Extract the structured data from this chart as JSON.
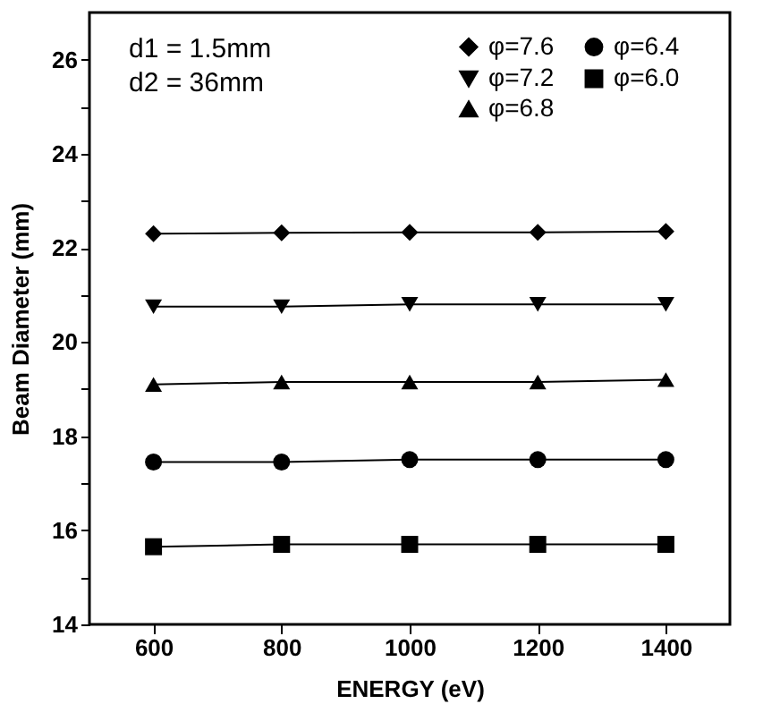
{
  "chart_data": {
    "type": "line",
    "xlabel": "ENERGY (eV)",
    "ylabel": "Beam Diameter (mm)",
    "annotations": [
      "d1 = 1.5mm",
      "d2 = 36mm"
    ],
    "x": [
      600,
      800,
      1000,
      1200,
      1400
    ],
    "xlim": [
      500,
      1500
    ],
    "xticks": [
      600,
      800,
      1000,
      1200,
      1400
    ],
    "ylim": [
      14,
      27
    ],
    "yticks": [
      14,
      {
        "value": 15,
        "label": null
      },
      16,
      {
        "value": 17,
        "label": null
      },
      18,
      {
        "value": 19,
        "label": null
      },
      20,
      {
        "value": 21,
        "label": null
      },
      22,
      {
        "value": 23,
        "label": null
      },
      24,
      {
        "value": 25,
        "label": null
      },
      26
    ],
    "grid": false,
    "legend": "top right",
    "line_style": "solid",
    "series": [
      {
        "name": "φ=7.6",
        "color": "#000000",
        "marker": "diamond",
        "values": [
          22.3,
          22.32,
          22.33,
          22.33,
          22.35
        ]
      },
      {
        "name": "φ=6.4",
        "color": "#000000",
        "marker": "circle",
        "values": [
          17.45,
          17.45,
          17.5,
          17.5,
          17.5
        ]
      },
      {
        "name": "φ=7.2",
        "color": "#000000",
        "marker": "triangle-down",
        "values": [
          20.75,
          20.75,
          20.8,
          20.8,
          20.8
        ]
      },
      {
        "name": "φ=6.0",
        "color": "#000000",
        "marker": "square",
        "values": [
          15.65,
          15.7,
          15.7,
          15.7,
          15.7
        ]
      },
      {
        "name": "φ=6.8",
        "color": "#000000",
        "marker": "triangle",
        "values": [
          19.1,
          19.15,
          19.15,
          19.15,
          19.2
        ]
      }
    ]
  }
}
